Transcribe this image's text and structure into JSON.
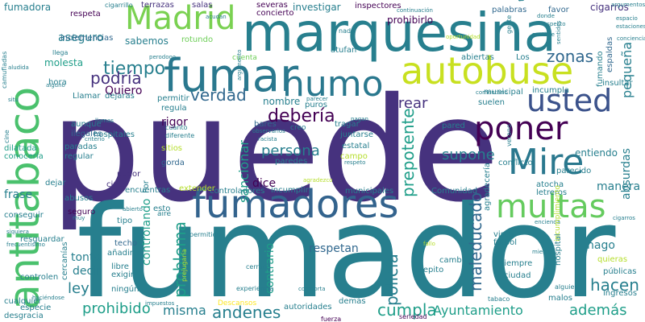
{
  "words": {
    "puede": "puede",
    "fumador": "fumador",
    "marquesina": "marquesina",
    "fumar": "fumar",
    "antitabaco": "antitabaco",
    "fumadores": "fumadores",
    "autobuse": "autobuse",
    "humo": "humo",
    "poner": "poner",
    "multas": "multas",
    "mire": "Mire",
    "usted": "usted",
    "madrid": "Madrid",
    "tiempo": "tiempo",
    "verdad": "verdad",
    "deberia": "debería",
    "podria": "podría",
    "persona": "persona",
    "sancionar": "sancionar",
    "prepotente": "prepotente",
    "supone": "supone",
    "crear": "crear",
    "zonas": "zonas",
    "pequena": "pequeña",
    "maleducado": "maleducado",
    "dice": "dice",
    "problema": "problema",
    "controlando": "controlando",
    "policia": "policía",
    "contrario": "contrario",
    "respetan": "respetan",
    "ley": "ley",
    "hacen": "hacen",
    "prohibido": "prohibido",
    "misma": "misma",
    "andenes": "andenes",
    "cumpla": "cumpla",
    "ayuntamiento": "Ayuntamiento",
    "ademas": "además",
    "aseguro": "aseguro",
    "fumadora": "fumadora",
    "investigar": "investigar",
    "prohibirlo": "prohibirlo",
    "cigarros": "cigarros",
    "nombre": "nombre",
    "entiendo": "entiendo",
    "manera": "manera",
    "frase": "frase",
    "tonto": "tonto",
    "decir": "decir",
    "hago": "hago",
    "absurdas": "absurdas",
    "espaldas": "espaldas",
    "quiero": "Quiero",
    "sabemos": "sabemos",
    "molesta": "molesta",
    "inclemencias": "inclemencias",
    "respeta": "respeta",
    "terrazas": "terrazas",
    "salas": "salas",
    "severas": "severas",
    "concierto": "concierto",
    "inspectores": "inspectores",
    "palabras": "palabras",
    "favor": "favor",
    "tres": "tres",
    "rotundo": "rotundo",
    "llega": "llega",
    "hora": "hora",
    "ilegales": "ilegales",
    "paradas": "paradas",
    "regular": "regular",
    "hospitales": "hospitales",
    "aunque": "aunque",
    "dilatada": "dilatada",
    "conoceria": "conocería",
    "conseguir": "conseguir",
    "seguro": "seguro",
    "abusos": "abusos",
    "dejar": "dejar",
    "cinco": "cinco",
    "pudor": "pudor",
    "gorda": "gorda",
    "sitios": "sitios",
    "rigor": "rigor",
    "regula": "regula",
    "permitir": "permitir",
    "contra": "contra",
    "esto": "esto",
    "tipo": "tipo",
    "techo": "techo",
    "anadir": "añadir",
    "libre": "libre",
    "exigir": "exigir",
    "ninguno": "ningún",
    "cercanias": "cercanías",
    "cualquier": "cualquier",
    "controlen": "controlen",
    "especie": "especie",
    "desgracia": "desgracia",
    "resguardar": "resguardar",
    "abiertas": "abiertas",
    "municipal": "municipal",
    "incumpla": "incumpla",
    "bares": "bares",
    "tragar": "tragar",
    "juntarse": "juntarse",
    "estatal": "estatal",
    "campo": "campo",
    "pared": "pared",
    "conflicto": "conflicto",
    "parecido": "parecido",
    "comunidad": "Comunidad",
    "letreros": "letreros",
    "agradeceria": "agradecería",
    "atocha": "atocha",
    "repito": "repito",
    "cambios": "cambios",
    "siempre": "siempre",
    "ciudad": "ciudad",
    "malos": "malos",
    "publicas": "públicas",
    "ingresos": "ingresos",
    "quieras": "quieras",
    "autoridades": "autoridades",
    "demas": "demás",
    "pasar": "pasar",
    "incumplir": "incumplir",
    "municipales": "municipales",
    "controladores": "controladores",
    "paredes": "paredes",
    "extender": "extender",
    "encuentras": "encuentras",
    "llamar": "Llamar",
    "dejaras": "dejaras",
    "puros": "puros",
    "suelen": "suelen",
    "fumando": "fumando",
    "insultar": "insultar",
    "hospital": "hospital",
    "futbol": "fútbol",
    "vista": "vista",
    "cigarrillo": "cigarrillo",
    "nada": "nada",
    "atufan": "atufan",
    "cuenta": "cuenta",
    "creo": "creo",
    "alguien": "alguien",
    "tabaco": "tabaco",
    "fuerza": "fuerza",
    "seriedad": "seriedad",
    "permitido": "permitido",
    "prejugaria": "prejugaría",
    "descansos": "Descansos",
    "aire": "aire",
    "cuanto": "cuanto",
    "diferente": "diferente",
    "racista": "racista",
    "criterio": "criterio",
    "llamas": "llamas",
    "abierto": "abierto",
    "haciendose": "haciéndose",
    "fallo": "fallo",
    "miente": "miente",
    "encienda": "encienda",
    "situ": "situ",
    "alguno": "alguno",
    "aludida": "aludida",
    "camufladas": "camufladas",
    "cine": "cine",
    "frecuentísimo": "frecuentísimo",
    "espacio": "espacio",
    "estaciones": "estaciones",
    "pagan": "pagan",
    "sentirse": "sentirse",
    "aspecto": "aspecto",
    "donde": "donde",
    "los": "Los",
    "por": "Por",
    "continuacion": "continuación",
    "argumentos": "argumentos",
    "oportunidad": "oportunidad",
    "observarlos": "observarlos",
    "incumplimiento": "incumplimiento",
    "impuestos": "impuestos",
    "siquiera": "siquiera",
    "perodooo": "perodooo",
    "comporta": "comporta",
    "experiencia": "experiencia",
    "cerrada": "cerrada",
    "gente": "gente",
    "verano": "verano",
    "respeto": "respeto",
    "muy": "muy",
    "comentario": "comentario",
    "argumento": "argumento",
    "parecer": "parecer",
    "agradezco": "agradezco",
    "sentidos": "sentidos",
    "acudan": "acudan",
    "cigarros2": "cigarros",
    "conciencia": "conciencia"
  }
}
